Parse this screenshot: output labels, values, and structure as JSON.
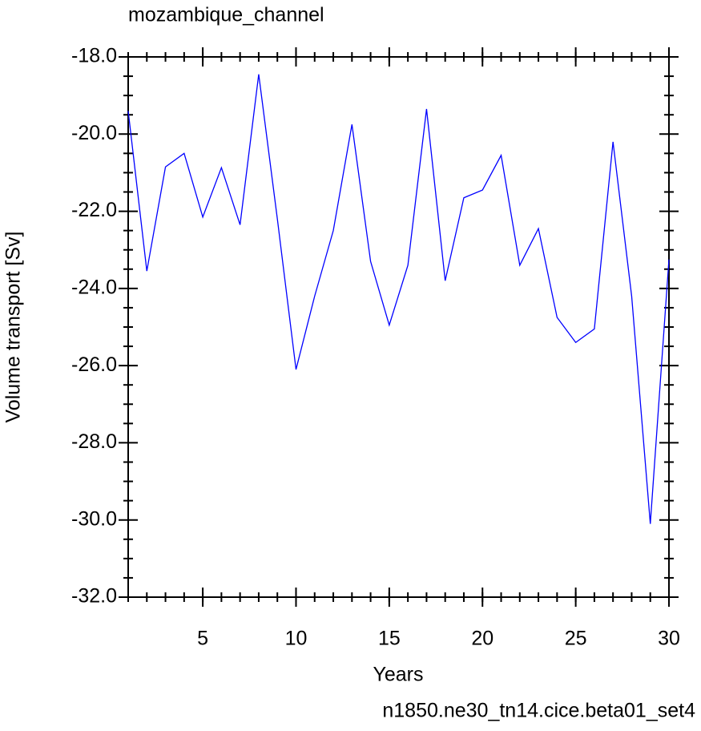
{
  "chart_data": {
    "type": "line",
    "title": "mozambique_channel",
    "xlabel": "Years",
    "ylabel": "Volume transport [Sv]",
    "caption": "n1850.ne30_tn14.cice.beta01_set4",
    "caption_color": "#0000ff",
    "x": [
      1,
      2,
      3,
      4,
      5,
      6,
      7,
      8,
      9,
      10,
      11,
      12,
      13,
      14,
      15,
      16,
      17,
      18,
      19,
      20,
      21,
      22,
      23,
      24,
      25,
      26,
      27,
      28,
      29,
      30
    ],
    "series": [
      {
        "name": "mozambique_channel",
        "color": "#0000ff",
        "values": [
          -19.4,
          -23.55,
          -20.85,
          -20.5,
          -22.15,
          -20.87,
          -22.35,
          -18.45,
          -22.2,
          -26.1,
          -24.2,
          -22.5,
          -19.75,
          -23.3,
          -24.95,
          -23.4,
          -19.35,
          -23.8,
          -21.65,
          -21.45,
          -20.55,
          -23.4,
          -22.45,
          -24.75,
          -25.4,
          -25.05,
          -20.2,
          -24.2,
          -30.1,
          -23.25
        ]
      }
    ],
    "xlim": [
      1,
      30
    ],
    "xticks": [
      5,
      10,
      15,
      20,
      25,
      30
    ],
    "ylim": [
      -32,
      -18
    ],
    "yticks": [
      {
        "value": -32,
        "label": "-32.0"
      },
      {
        "value": -30,
        "label": "-30.0"
      },
      {
        "value": -28,
        "label": "-28.0"
      },
      {
        "value": -26,
        "label": "-26.0"
      },
      {
        "value": -24,
        "label": "-24.0"
      },
      {
        "value": -22,
        "label": "-22.0"
      },
      {
        "value": -20,
        "label": "-20.0"
      },
      {
        "value": -18,
        "label": "-18.0"
      }
    ],
    "grid": false
  }
}
